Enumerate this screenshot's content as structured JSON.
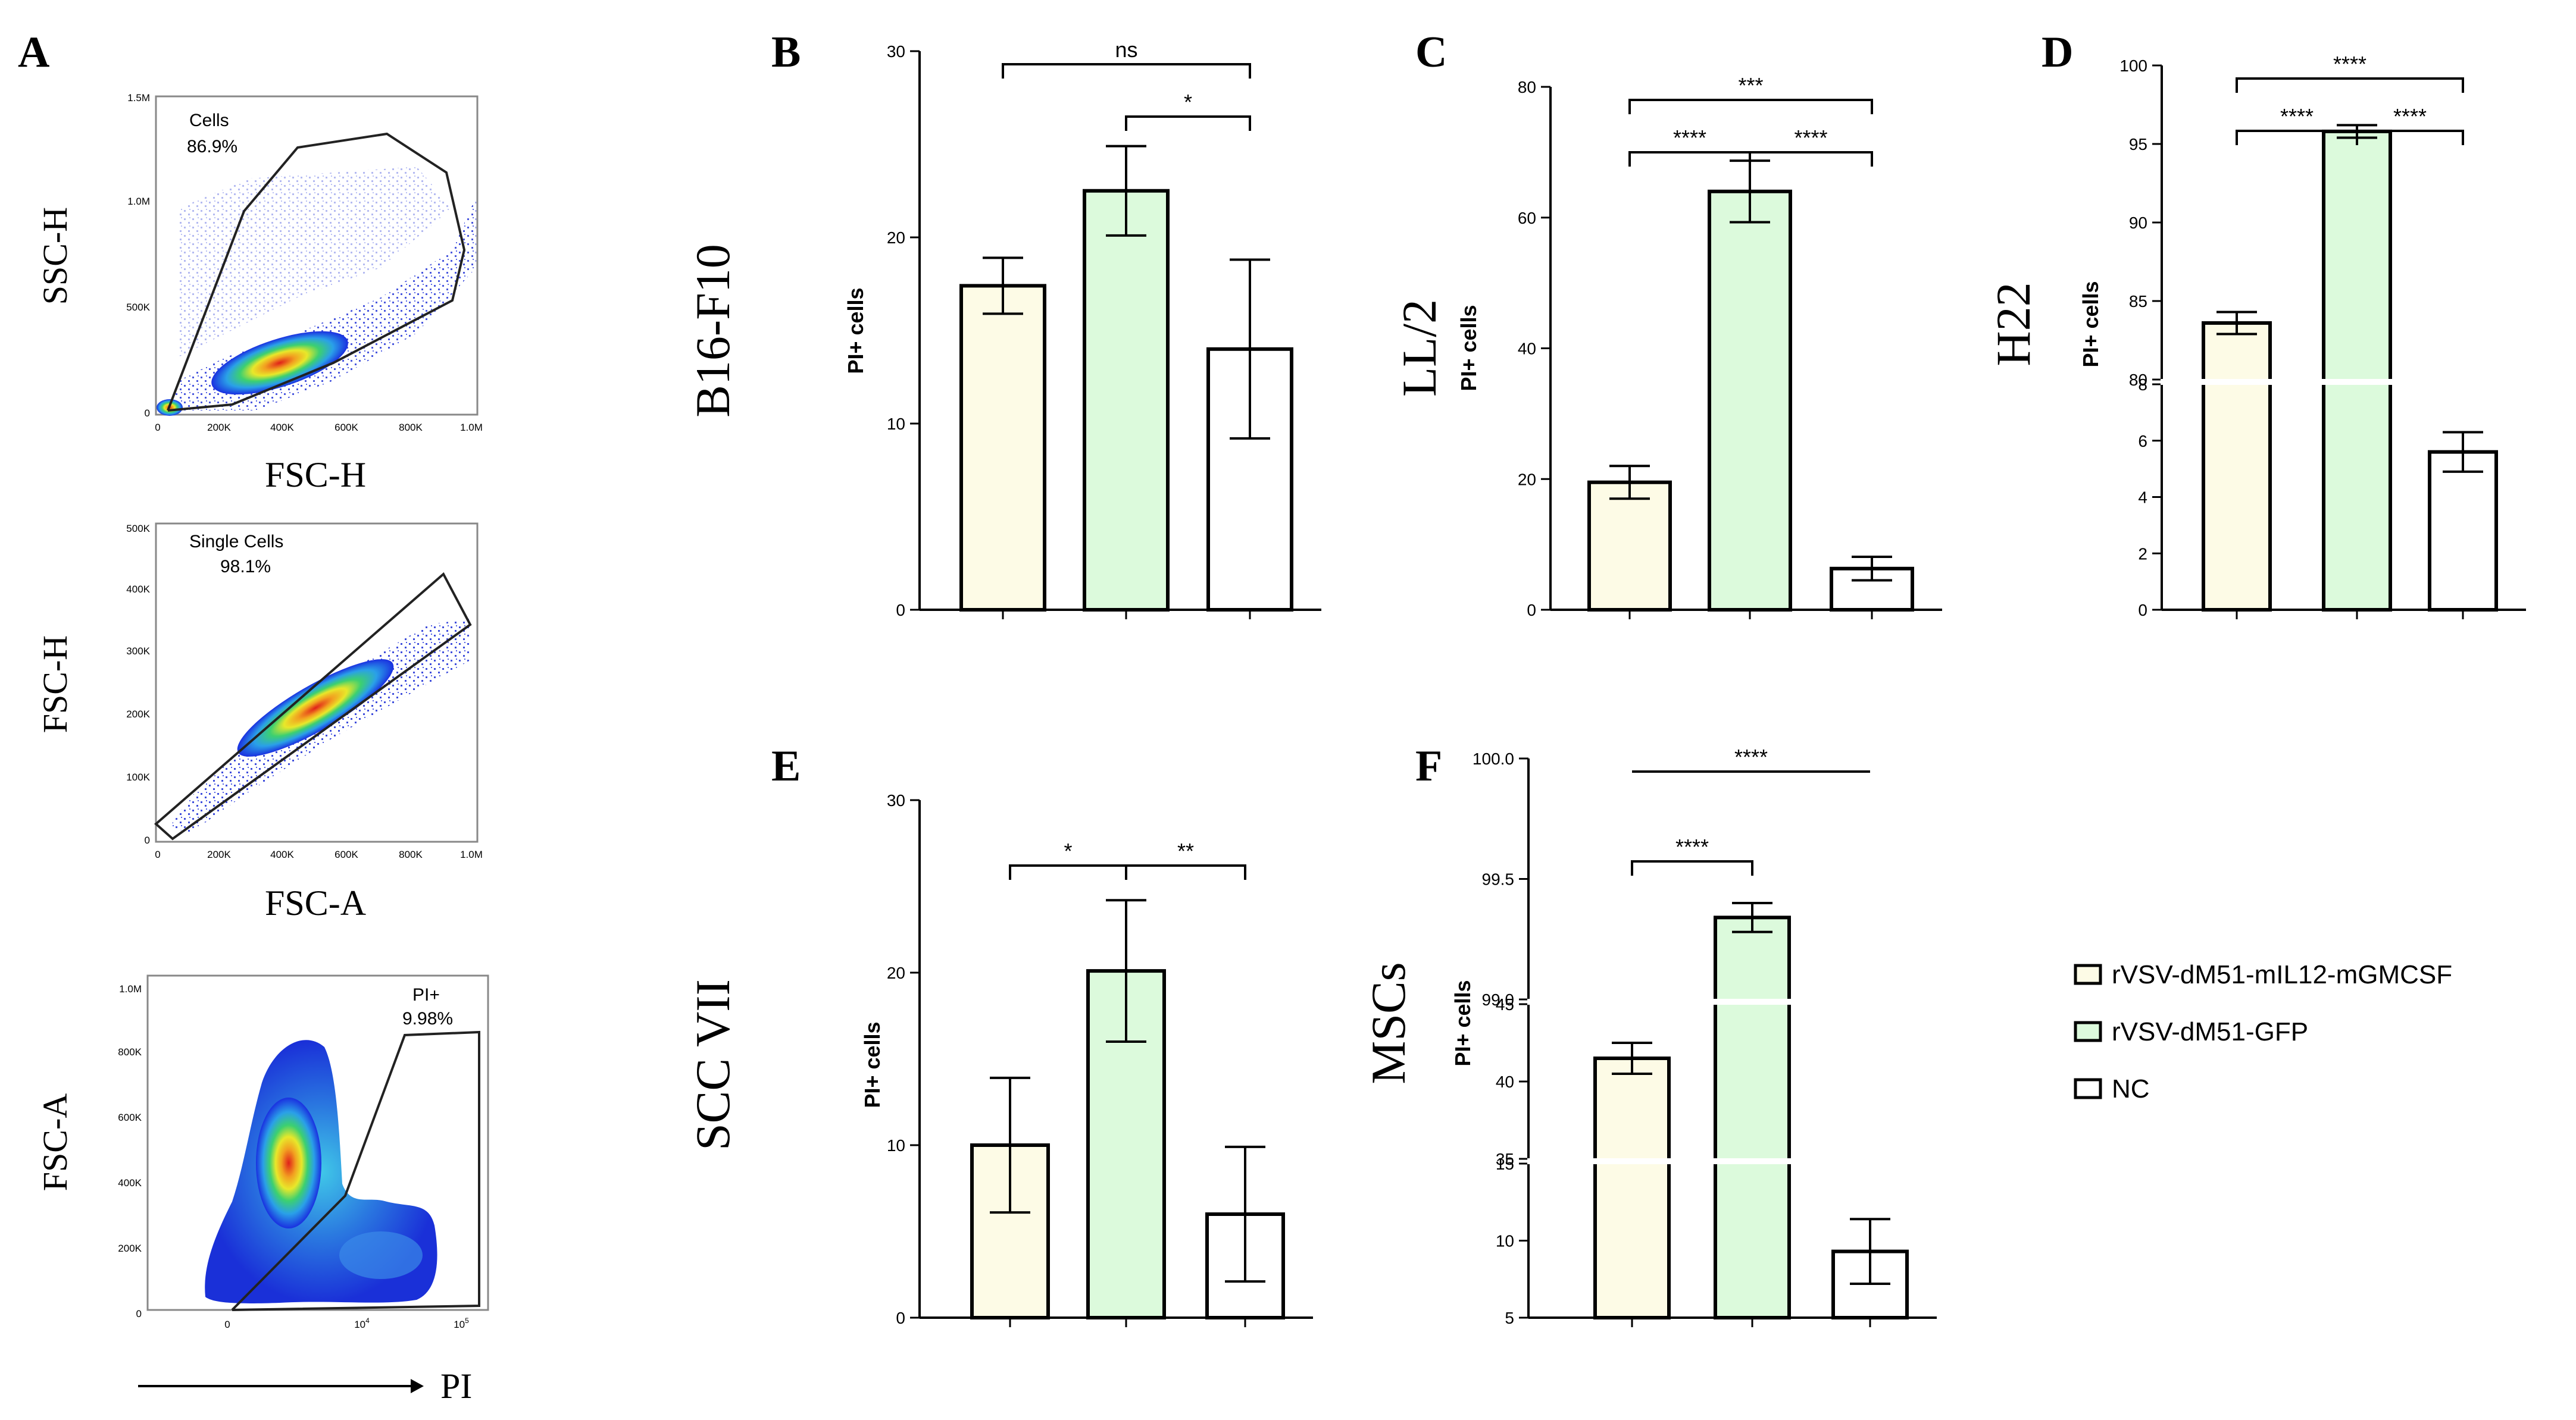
{
  "panel_letters": [
    "A",
    "B",
    "C",
    "D",
    "E",
    "F"
  ],
  "flow": {
    "plots": [
      {
        "gate_name": "Cells",
        "gate_pct": "86.9%",
        "ylabel": "SSC-H",
        "xlabel": "FSC-H",
        "yticks": [
          "1.5M",
          "1.0M",
          "500K",
          "0"
        ],
        "xticks": [
          "0",
          "200K",
          "400K",
          "600K",
          "800K",
          "1.0M"
        ]
      },
      {
        "gate_name": "Single Cells",
        "gate_pct": "98.1%",
        "ylabel": "FSC-H",
        "xlabel": "FSC-A",
        "yticks": [
          "500K",
          "400K",
          "300K",
          "200K",
          "100K",
          "0"
        ],
        "xticks": [
          "0",
          "200K",
          "400K",
          "600K",
          "800K",
          "1.0M"
        ]
      },
      {
        "gate_name": "PI+",
        "gate_pct": "9.98%",
        "ylabel": "FSC-A",
        "xlabel": "PI",
        "yticks": [
          "1.0M",
          "800K",
          "600K",
          "400K",
          "200K",
          "0"
        ],
        "xticks": [
          "0",
          "10",
          "10",
          "10"
        ],
        "xtick_exponents": [
          "",
          "",
          "4",
          "5"
        ]
      }
    ]
  },
  "legend": {
    "entries": [
      {
        "label": "rVSV-dM51-mIL12-mGMCSF",
        "color": "#fdfbe6"
      },
      {
        "label": "rVSV-dM51-GFP",
        "color": "#dcfadc"
      },
      {
        "label": "NC",
        "color": "#ffffff"
      }
    ]
  },
  "colors": {
    "group1": "#fdfbe6",
    "group2": "#dcfadc",
    "group3": "#ffffff",
    "stroke": "#000000"
  },
  "chart_data": [
    {
      "panel": "B",
      "type": "bar",
      "side_label": "B16-F10",
      "ylabel": "PI+ cells",
      "ylim": [
        0,
        30
      ],
      "yticks": [
        0,
        10,
        20,
        30
      ],
      "values": [
        17.4,
        22.5,
        14.0
      ],
      "errors": [
        1.5,
        2.4,
        4.8
      ],
      "sig": [
        {
          "a": 0,
          "b": 2,
          "label": "ns"
        },
        {
          "a": 1,
          "b": 2,
          "label": "*"
        }
      ]
    },
    {
      "panel": "C",
      "type": "bar",
      "side_label": "LL/2",
      "ylabel": "PI+ cells",
      "ylim": [
        0,
        80
      ],
      "yticks": [
        0,
        20,
        40,
        60,
        80
      ],
      "values": [
        19.5,
        64.0,
        6.3
      ],
      "errors": [
        2.5,
        4.7,
        1.8
      ],
      "sig": [
        {
          "a": 0,
          "b": 2,
          "label": "***"
        },
        {
          "a": 0,
          "b": 1,
          "label": "****"
        },
        {
          "a": 1,
          "b": 2,
          "label": "****"
        }
      ]
    },
    {
      "panel": "D",
      "type": "bar",
      "side_label": "H22",
      "ylabel": "PI+ cells",
      "axis_break": true,
      "upper": {
        "ylim": [
          80,
          100
        ],
        "yticks": [
          80,
          85,
          90,
          95,
          100
        ]
      },
      "lower": {
        "ylim": [
          0,
          8
        ],
        "yticks": [
          0,
          2,
          4,
          6,
          8
        ]
      },
      "values": [
        83.6,
        95.8,
        5.6
      ],
      "errors": [
        0.7,
        0.4,
        0.7
      ],
      "sig": [
        {
          "a": 0,
          "b": 2,
          "label": "****"
        },
        {
          "a": 0,
          "b": 1,
          "label": "****"
        },
        {
          "a": 1,
          "b": 2,
          "label": "****"
        }
      ]
    },
    {
      "panel": "E",
      "type": "bar",
      "side_label": "SCC VII",
      "ylabel": "PI+ cells",
      "ylim": [
        0,
        30
      ],
      "yticks": [
        0,
        10,
        20,
        30
      ],
      "values": [
        10.0,
        20.1,
        6.0
      ],
      "errors": [
        3.9,
        4.1,
        3.9
      ],
      "sig": [
        {
          "a": 0,
          "b": 1,
          "label": "*"
        },
        {
          "a": 1,
          "b": 2,
          "label": "**"
        }
      ]
    },
    {
      "panel": "F",
      "type": "bar",
      "side_label": "MSCs",
      "ylabel": "PI+ cells",
      "axis_break": true,
      "top": {
        "ylim": [
          99.0,
          100.0
        ],
        "yticks": [
          "99.0",
          "99.5",
          "100.0"
        ]
      },
      "middle": {
        "ylim": [
          35,
          45
        ],
        "yticks": [
          "35",
          "40",
          "45"
        ]
      },
      "bottom": {
        "ylim": [
          5,
          15
        ],
        "yticks": [
          "5",
          "10",
          "15"
        ]
      },
      "values": [
        41.5,
        99.34,
        9.3
      ],
      "errors": [
        1.0,
        0.06,
        2.1
      ],
      "sig": [
        {
          "a": 0,
          "b": 2,
          "label": "****"
        },
        {
          "a": 0,
          "b": 1,
          "label": "****"
        }
      ]
    }
  ]
}
